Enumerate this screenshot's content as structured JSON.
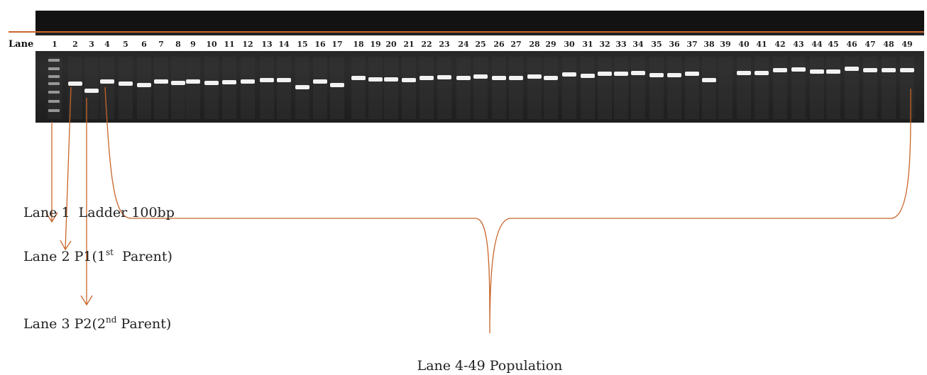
{
  "lane_header": "Lane",
  "lanes": [
    "1",
    "2",
    "3",
    "4",
    "5",
    "6",
    "7",
    "8",
    "9",
    "10",
    "11",
    "12",
    "13",
    "14",
    "15",
    "16",
    "17",
    "18",
    "19",
    "20",
    "21",
    "22",
    "23",
    "24",
    "25",
    "26",
    "27",
    "28",
    "29",
    "30",
    "31",
    "32",
    "33",
    "34",
    "35",
    "36",
    "37",
    "38",
    "39",
    "40",
    "41",
    "42",
    "43",
    "44",
    "45",
    "46",
    "47",
    "48",
    "49"
  ],
  "legend": [
    {
      "text": "Lane 1  Ladder 100bp"
    },
    {
      "prefix": "Lane 2 P1(1",
      "sup": "st",
      "suffix": "  Parent)"
    },
    {
      "prefix": "Lane 3 P2(2",
      "sup": "nd",
      "suffix": " Parent)"
    }
  ],
  "population_label": "Lane 4-49 Population"
}
